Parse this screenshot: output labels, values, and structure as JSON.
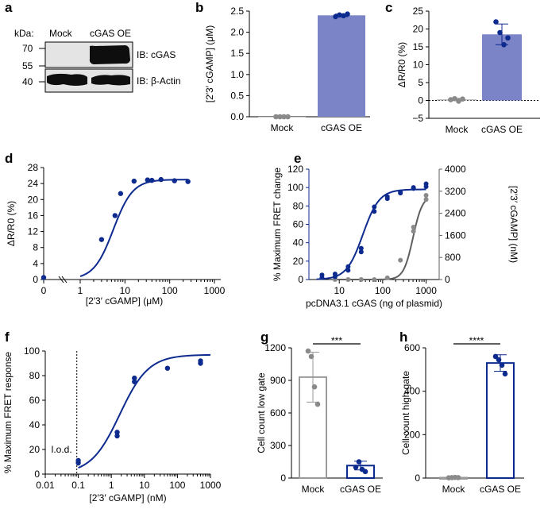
{
  "colors": {
    "blue": "#0d2a8f",
    "bar_blue": "#7a84c7",
    "gray": "#8a8a8a",
    "dark_gray": "#5f5f5f",
    "light_gray": "#b4b4b4",
    "black": "#000000"
  },
  "panels": {
    "a": {
      "letter": "a",
      "kda_label": "kDa:",
      "lanes": [
        "Mock",
        "cGAS OE"
      ],
      "markers": [
        "70",
        "55",
        "40"
      ],
      "ib_cgas": "IB: cGAS",
      "ib_actin": "IB: β-Actin"
    },
    "b": {
      "letter": "b"
    },
    "c": {
      "letter": "c"
    },
    "d": {
      "letter": "d"
    },
    "e": {
      "letter": "e"
    },
    "f": {
      "letter": "f",
      "lod_label": "l.o.d."
    },
    "g": {
      "letter": "g",
      "sig": "***"
    },
    "h": {
      "letter": "h",
      "sig": "****"
    }
  },
  "chart_data": [
    {
      "id": "b",
      "type": "bar",
      "categories": [
        "Mock",
        "cGAS OE"
      ],
      "values": [
        0.0,
        2.4
      ],
      "points": [
        [
          0,
          0,
          0,
          0
        ],
        [
          2.37,
          2.41,
          2.39,
          2.43
        ]
      ],
      "errors": [
        0.0,
        0.03
      ],
      "ylabel": "[2′3′ cGAMP] (μM)",
      "ylim": [
        0,
        2.5
      ],
      "yticks": [
        "0.0",
        "0.5",
        "1.0",
        "1.5",
        "2.0",
        "2.5"
      ]
    },
    {
      "id": "c",
      "type": "bar",
      "categories": [
        "Mock",
        "cGAS OE"
      ],
      "values": [
        0.3,
        18.5
      ],
      "points": [
        [
          0.2,
          0.5,
          -0.2,
          0.4
        ],
        [
          22.0,
          19.0,
          15.6,
          17.5
        ]
      ],
      "errors": [
        0.3,
        2.9
      ],
      "ylabel": "ΔR/R0 (%)",
      "ylim": [
        -5,
        25
      ],
      "dotted_zero": true,
      "yticks": [
        "−5",
        "0",
        "5",
        "10",
        "15",
        "20",
        "25"
      ]
    },
    {
      "id": "d",
      "type": "line",
      "xscale": "log",
      "x": [
        0.1,
        3,
        6,
        8,
        16,
        32,
        40,
        64,
        128,
        256
      ],
      "y": [
        0.5,
        10,
        16,
        21.5,
        24.6,
        24.9,
        24.8,
        25,
        24.7,
        24.5
      ],
      "fit": {
        "bottom": 0,
        "top": 25,
        "ec50": 5.5,
        "hill": 2.0
      },
      "xticks": [
        "0",
        "1",
        "10",
        "100",
        "1000"
      ],
      "xlabel": "[2′3′ cGAMP] (μM)",
      "ylabel": "ΔR/R0 (%)",
      "ylim": [
        0,
        28
      ],
      "yticks": [
        "0",
        "4",
        "8",
        "12",
        "16",
        "20",
        "24",
        "28"
      ]
    },
    {
      "id": "e",
      "type": "line",
      "xscale": "log",
      "xlim": [
        2,
        2000
      ],
      "xticks": [
        "10",
        "100",
        "1000"
      ],
      "xlabel": "pcDNA3.1 cGAS (ng of plasmid)",
      "series": [
        {
          "name": "% Maximum FRET change",
          "axis": "left",
          "x": [
            4,
            4,
            8,
            8,
            16,
            16,
            32,
            32,
            64,
            64,
            128,
            128,
            256,
            256,
            512,
            512,
            1000,
            1000
          ],
          "y": [
            2,
            5,
            3,
            6,
            10,
            14,
            30,
            34,
            74,
            79,
            88,
            90,
            94,
            95,
            99,
            100,
            101,
            104
          ],
          "fit": {
            "bottom": 0,
            "top": 98,
            "ec50": 35,
            "hill": 2.3
          }
        },
        {
          "name": "[2′3′ cGAMP] (nM)",
          "axis": "right",
          "x": [
            8,
            16,
            32,
            64,
            128,
            256,
            512,
            512,
            1000,
            1000
          ],
          "y": [
            0,
            0,
            0,
            0,
            60,
            700,
            1750,
            1900,
            2900,
            3050
          ],
          "fit": {
            "bottom": 0,
            "top": 3050,
            "ec50": 500,
            "hill": 4.0
          }
        }
      ],
      "ylabel_left": "% Maximum FRET change",
      "ylim_left": [
        0,
        120
      ],
      "yticks_left": [
        "0",
        "20",
        "40",
        "60",
        "80",
        "100",
        "120"
      ],
      "ylabel_right": "[2′3′ cGAMP] (nM)",
      "ylim_right": [
        0,
        4000
      ],
      "yticks_right": [
        "0",
        "800",
        "1600",
        "2400",
        "3200",
        "4000"
      ]
    },
    {
      "id": "f",
      "type": "line",
      "xscale": "log",
      "xlim": [
        0.01,
        1000
      ],
      "x": [
        0.1,
        0.1,
        1.5,
        1.5,
        5,
        5,
        50,
        500,
        500
      ],
      "y": [
        9,
        11,
        31,
        34,
        75,
        78,
        86,
        90,
        92
      ],
      "fit": {
        "bottom": 0,
        "top": 97,
        "ec50": 1.8,
        "hill": 1.0
      },
      "lod_x": 0.09,
      "xticks": [
        "0.01",
        "0.1",
        "1",
        "10",
        "100",
        "1000"
      ],
      "xlabel": "[2′3′ cGAMP] (nM)",
      "ylabel": "% Maximum FRET response",
      "ylim": [
        0,
        100
      ],
      "yticks": [
        "0",
        "20",
        "40",
        "60",
        "80",
        "100"
      ]
    },
    {
      "id": "g",
      "type": "bar",
      "categories": [
        "Mock",
        "cGAS OE"
      ],
      "values": [
        930,
        115
      ],
      "points": [
        [
          1170,
          1120,
          840,
          680
        ],
        [
          100,
          150,
          80,
          60
        ]
      ],
      "errors": [
        230,
        40
      ],
      "ylabel": "Cell count low gate",
      "ylim": [
        0,
        1200
      ],
      "yticks": [
        "0",
        "300",
        "600",
        "900",
        "1200"
      ]
    },
    {
      "id": "h",
      "type": "bar",
      "categories": [
        "Mock",
        "cGAS OE"
      ],
      "values": [
        2,
        530
      ],
      "points": [
        [
          1,
          2,
          3,
          2
        ],
        [
          560,
          545,
          520,
          480
        ]
      ],
      "errors": [
        1,
        38
      ],
      "ylabel": "Cell count high gate",
      "ylim": [
        0,
        600
      ],
      "yticks": [
        "0",
        "200",
        "400",
        "600"
      ]
    }
  ]
}
